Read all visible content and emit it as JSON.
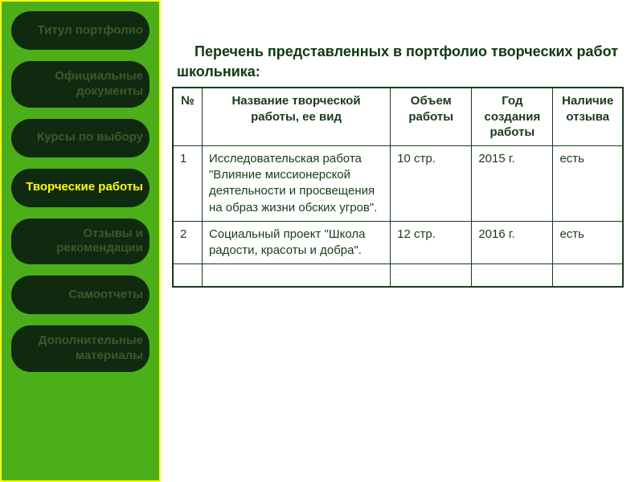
{
  "sidebar": {
    "items": [
      {
        "label": "Титул портфолио",
        "active": false
      },
      {
        "label": "Официальные документы",
        "active": false
      },
      {
        "label": "Курсы по выбору",
        "active": false
      },
      {
        "label": "Творческие работы",
        "active": true
      },
      {
        "label": "Отзывы и рекомендации",
        "active": false
      },
      {
        "label": "Самоотчеты",
        "active": false
      },
      {
        "label": "Дополнительные   материалы",
        "active": false
      }
    ]
  },
  "heading": "Перечень представленных в портфолио творческих работ школьника:",
  "table": {
    "columns": [
      "№",
      "Название творческой работы, ее вид",
      "Объем работы",
      "Год создания работы",
      "Наличие отзыва"
    ],
    "rows": [
      [
        "1",
        "Исследовательская работа \"Влияние миссионерской деятельности и просвещения на образ жизни обских угров\".",
        "10 стр.",
        "2015 г.",
        "есть"
      ],
      [
        "2",
        "Социальный проект \"Школа радости, красоты и добра\".",
        "12 стр.",
        "2016 г.",
        "есть"
      ],
      [
        "",
        "",
        "",
        "",
        ""
      ]
    ]
  },
  "colors": {
    "sidebar_bg": "#4caf1a",
    "sidebar_border": "#ffff00",
    "btn_bg": "#0f2a0f",
    "btn_inactive_text": "#3a5a2a",
    "btn_active_text": "#ffff00",
    "heading_text": "#0f3a0f",
    "table_border": "#1a3a1a",
    "table_text": "#1a3a1a"
  }
}
